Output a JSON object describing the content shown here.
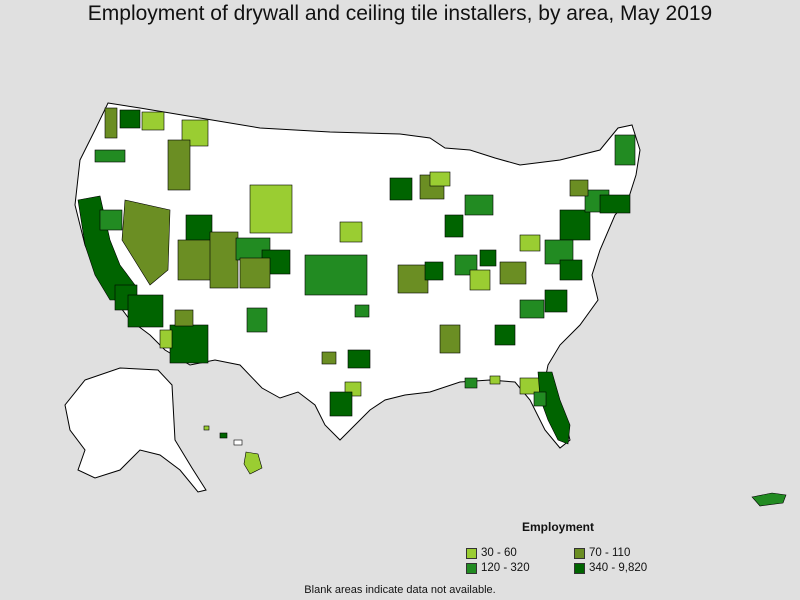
{
  "title": "Employment of drywall and ceiling tile installers, by area, May 2019",
  "legend": {
    "title": "Employment",
    "items": [
      {
        "label": "30 - 60",
        "color": "#9acd32"
      },
      {
        "label": "70 - 110",
        "color": "#6b8e23"
      },
      {
        "label": "120 - 320",
        "color": "#228b22"
      },
      {
        "label": "340 - 9,820",
        "color": "#006400"
      }
    ]
  },
  "footnote": "Blank areas indicate data not available.",
  "colors": {
    "background": "#e0e0e0",
    "land": "#ffffff",
    "border": "#000000"
  }
}
